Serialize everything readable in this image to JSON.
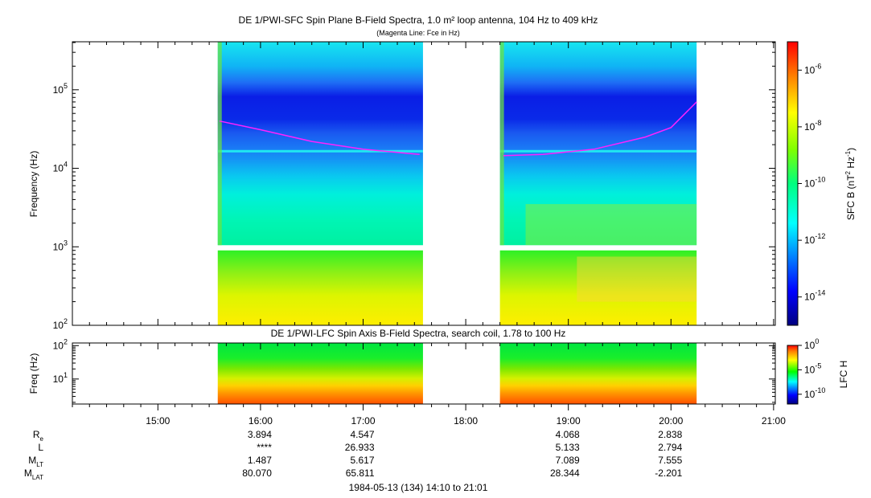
{
  "chart_data": [
    {
      "type": "heatmap",
      "title": "DE 1/PWI-SFC  Spin Plane B-Field Spectra, 1.0 m² loop antenna, 104 Hz to 409 kHz",
      "subtitle": "(Magenta Line: Fce in Hz)",
      "ylabel": "Frequency (Hz)",
      "yscale": "log",
      "ylim": [
        100,
        409000
      ],
      "y_ticks": [
        {
          "value": 100,
          "base": "10",
          "exp": "2"
        },
        {
          "value": 1000,
          "base": "10",
          "exp": "3"
        },
        {
          "value": 10000,
          "base": "10",
          "exp": "4"
        },
        {
          "value": 100000,
          "base": "10",
          "exp": "5"
        }
      ],
      "colorbar": {
        "label": "SFC B (nT",
        "label_exp1": "2",
        "label_mid": " Hz",
        "label_exp2": "-1",
        "label_end": ")",
        "scale": "log",
        "range": [
          1e-15,
          1e-05
        ],
        "ticks": [
          {
            "value": 1e-14,
            "base": "10",
            "exp": "-14"
          },
          {
            "value": 1e-12,
            "base": "10",
            "exp": "-12"
          },
          {
            "value": 1e-10,
            "base": "10",
            "exp": "-10"
          },
          {
            "value": 1e-08,
            "base": "10",
            "exp": "-8"
          },
          {
            "value": 1e-06,
            "base": "10",
            "exp": "-6"
          }
        ]
      },
      "data_intervals": [
        [
          "15:35",
          "17:35"
        ],
        [
          "18:20",
          "20:15"
        ]
      ],
      "fce_line": [
        {
          "t": "15:36",
          "f": 40000
        },
        {
          "t": "16:00",
          "f": 31000
        },
        {
          "t": "16:30",
          "f": 22000
        },
        {
          "t": "17:00",
          "f": 17500
        },
        {
          "t": "17:33",
          "f": 15000
        },
        {
          "t": "18:22",
          "f": 14500
        },
        {
          "t": "18:45",
          "f": 15000
        },
        {
          "t": "19:15",
          "f": 17500
        },
        {
          "t": "19:45",
          "f": 25000
        },
        {
          "t": "20:00",
          "f": 33000
        },
        {
          "t": "20:15",
          "f": 70000
        }
      ]
    },
    {
      "type": "heatmap",
      "title": "DE 1/PWI-LFC  Spin Axis B-Field Spectra, search coil, 1.78 to 100 Hz",
      "ylabel": "Freq (Hz)",
      "yscale": "log",
      "ylim": [
        1.78,
        120
      ],
      "y_ticks": [
        {
          "value": 10,
          "base": "10",
          "exp": "1"
        },
        {
          "value": 100,
          "base": "10",
          "exp": "2"
        }
      ],
      "colorbar": {
        "label": "LFC H",
        "scale": "log",
        "range": [
          1e-12,
          1
        ],
        "ticks": [
          {
            "value": 1e-10,
            "base": "10",
            "exp": "-10"
          },
          {
            "value": 1e-05,
            "base": "10",
            "exp": "-5"
          },
          {
            "value": 1,
            "base": "10",
            "exp": "0"
          }
        ]
      },
      "data_intervals": [
        [
          "15:35",
          "17:35"
        ],
        [
          "18:20",
          "20:15"
        ]
      ]
    }
  ],
  "x_axis": {
    "range": [
      "14:10",
      "21:01"
    ],
    "tick_labels": [
      "15:00",
      "16:00",
      "17:00",
      "18:00",
      "19:00",
      "20:00",
      "21:00"
    ],
    "date_label": "1984-05-13 (134) 14:10 to 21:01"
  },
  "ephemeris": {
    "rows": [
      {
        "label": "R",
        "sub": "e",
        "values": [
          "3.894",
          "4.547",
          "",
          "4.068",
          "2.838"
        ]
      },
      {
        "label": "L",
        "sub": "",
        "values": [
          "****",
          "26.933",
          "",
          "5.133",
          "2.794"
        ]
      },
      {
        "label": "M",
        "sub": "LT",
        "values": [
          "1.487",
          "5.617",
          "",
          "7.089",
          "7.555"
        ]
      },
      {
        "label": "M",
        "sub": "LAT",
        "values": [
          "80.070",
          "65.811",
          "28.344",
          "-2.201",
          ""
        ]
      }
    ],
    "columns": [
      "16:00",
      "17:00",
      "18:00",
      "19:00",
      "20:00"
    ]
  }
}
